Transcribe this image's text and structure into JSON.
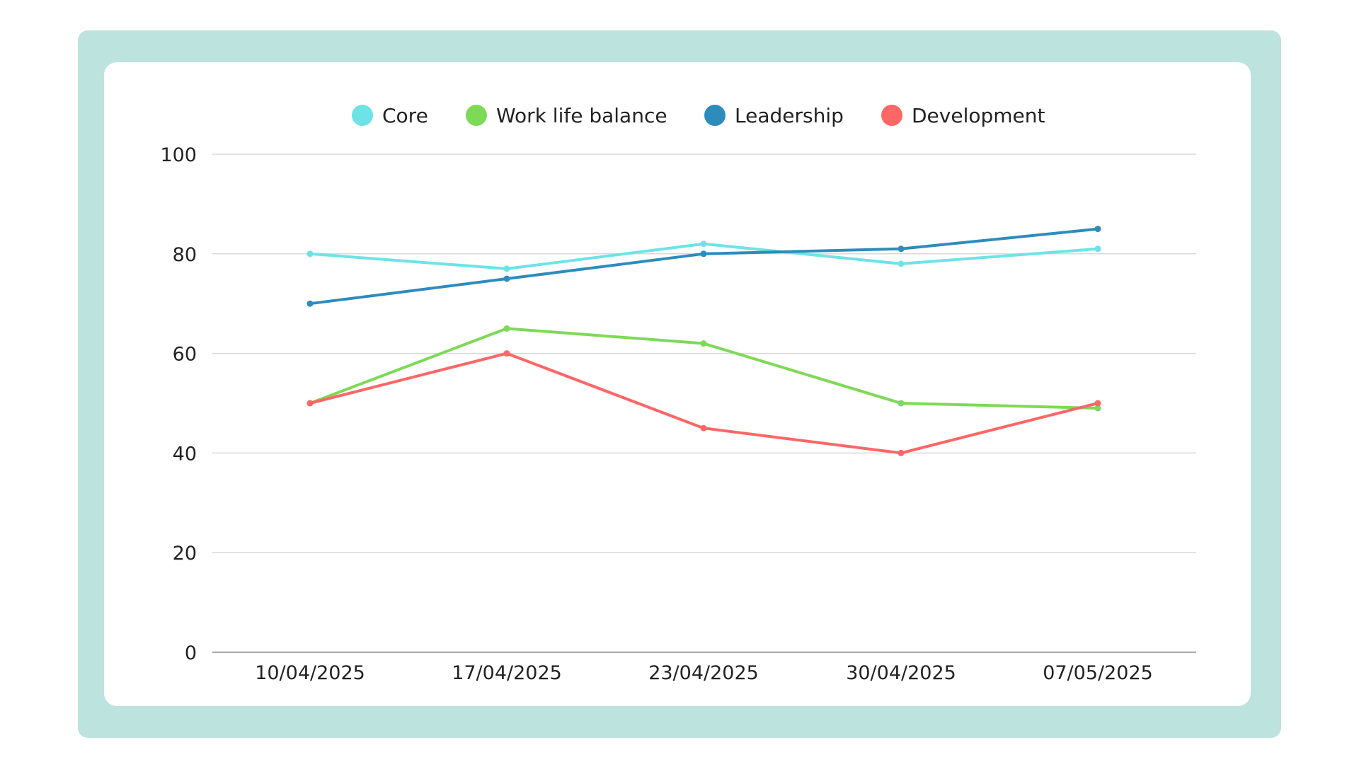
{
  "chart_data": {
    "type": "line",
    "title": "",
    "xlabel": "",
    "ylabel": "",
    "categories": [
      "10/04/2025",
      "17/04/2025",
      "23/04/2025",
      "30/04/2025",
      "07/05/2025"
    ],
    "ylim": [
      0,
      100
    ],
    "yticks": [
      0,
      20,
      40,
      60,
      80,
      100
    ],
    "grid": true,
    "legend_position": "top-center",
    "series": [
      {
        "name": "Core",
        "color": "#6ee3e6",
        "values": [
          80,
          77,
          82,
          78,
          81
        ]
      },
      {
        "name": "Work life balance",
        "color": "#7ed957",
        "values": [
          50,
          65,
          62,
          50,
          49
        ]
      },
      {
        "name": "Leadership",
        "color": "#2e8bbd",
        "values": [
          70,
          75,
          80,
          81,
          85
        ]
      },
      {
        "name": "Development",
        "color": "#ff6666",
        "values": [
          50,
          60,
          45,
          40,
          50
        ]
      }
    ]
  },
  "colors": {
    "frame": "#bde3df",
    "panel": "#ffffff",
    "grid": "#d9d9d9"
  }
}
